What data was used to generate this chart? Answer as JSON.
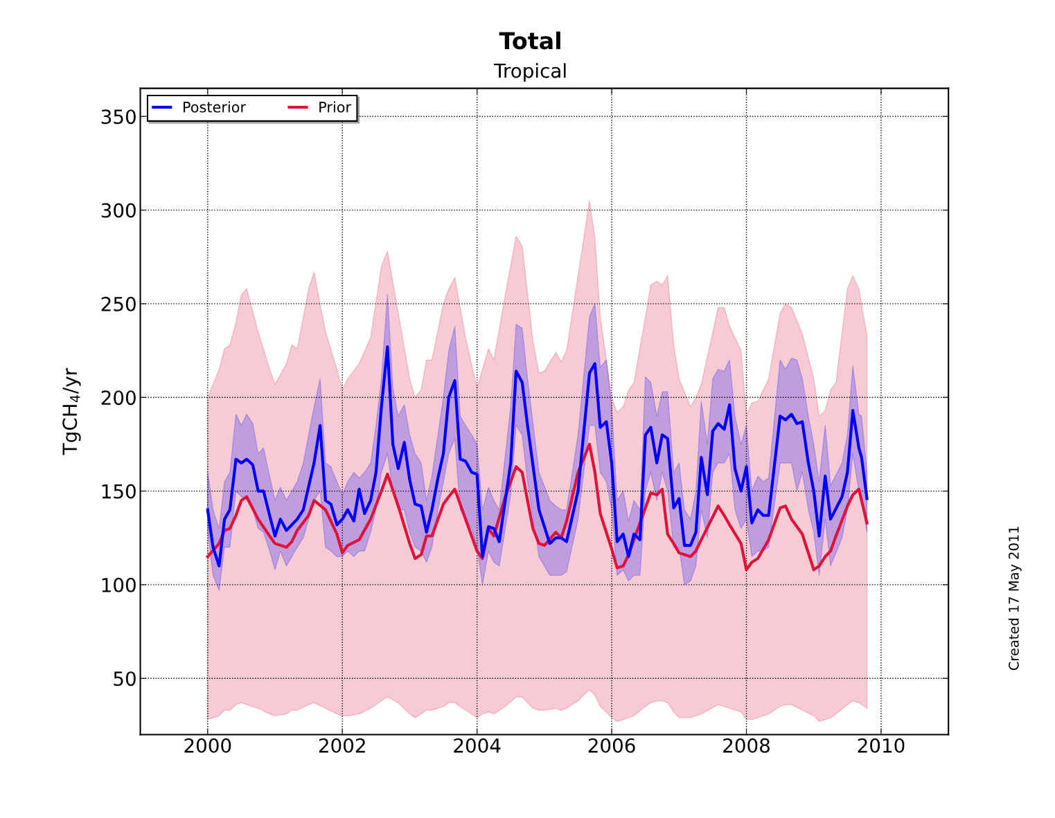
{
  "chart_data": {
    "type": "line",
    "title": "Total",
    "subtitle": "Tropical",
    "ylabel": "TgCH$_{4}$/yr",
    "annotations": [
      "Created 17 May 2011"
    ],
    "xlim": [
      1999,
      2011
    ],
    "xticks": [
      2000,
      2002,
      2004,
      2006,
      2008,
      2010
    ],
    "ylim": [
      20,
      365
    ],
    "yticks": [
      50,
      100,
      150,
      200,
      250,
      300,
      350
    ],
    "grid": true,
    "legend": "top left",
    "line_style": "solid",
    "marker": "none",
    "series": [
      {
        "name": "Prior",
        "color": "#dc143c",
        "x": [
          2000.0,
          2000.17,
          2000.25,
          2000.33,
          2000.42,
          2000.5,
          2000.58,
          2000.75,
          2000.92,
          2001.0,
          2001.17,
          2001.25,
          2001.33,
          2001.5,
          2001.58,
          2001.75,
          2001.92,
          2002.0,
          2002.08,
          2002.25,
          2002.42,
          2002.58,
          2002.67,
          2002.83,
          2003.0,
          2003.08,
          2003.17,
          2003.25,
          2003.33,
          2003.5,
          2003.58,
          2003.67,
          2003.83,
          2004.0,
          2004.08,
          2004.17,
          2004.25,
          2004.42,
          2004.58,
          2004.67,
          2004.83,
          2004.92,
          2005.0,
          2005.17,
          2005.25,
          2005.33,
          2005.5,
          2005.67,
          2005.75,
          2005.83,
          2006.0,
          2006.08,
          2006.17,
          2006.25,
          2006.33,
          2006.5,
          2006.58,
          2006.67,
          2006.75,
          2006.83,
          2006.92,
          2007.0,
          2007.17,
          2007.25,
          2007.33,
          2007.58,
          2007.67,
          2007.75,
          2007.92,
          2008.0,
          2008.08,
          2008.17,
          2008.33,
          2008.5,
          2008.58,
          2008.67,
          2008.83,
          2009.0,
          2009.08,
          2009.17,
          2009.25,
          2009.33,
          2009.5,
          2009.58,
          2009.67,
          2009.79
        ],
        "values": [
          115,
          122,
          129,
          130,
          137,
          145,
          147,
          135,
          126,
          122,
          120,
          123,
          129,
          137,
          145,
          140,
          127,
          117,
          121,
          124,
          135,
          150,
          159,
          142,
          122,
          114,
          116,
          126,
          126,
          143,
          147,
          151,
          135,
          118,
          114,
          130,
          126,
          147,
          163,
          160,
          130,
          122,
          121,
          128,
          125,
          134,
          160,
          175,
          160,
          138,
          119,
          109,
          110,
          116,
          124,
          141,
          149,
          148,
          151,
          127,
          122,
          117,
          115,
          118,
          124,
          142,
          137,
          132,
          122,
          108,
          112,
          114,
          124,
          141,
          142,
          135,
          127,
          108,
          110,
          115,
          118,
          126,
          142,
          148,
          151,
          133
        ],
        "upper": [
          200,
          215,
          226,
          228,
          240,
          255,
          258,
          235,
          215,
          207,
          218,
          228,
          226,
          258,
          267,
          235,
          215,
          204,
          210,
          218,
          232,
          270,
          278,
          245,
          210,
          200,
          204,
          220,
          220,
          250,
          258,
          264,
          232,
          205,
          215,
          226,
          220,
          255,
          286,
          281,
          230,
          213,
          214,
          224,
          219,
          225,
          265,
          305,
          285,
          243,
          200,
          192,
          195,
          204,
          208,
          243,
          260,
          262,
          260,
          265,
          228,
          210,
          195,
          200,
          207,
          248,
          248,
          238,
          225,
          190,
          197,
          198,
          210,
          245,
          250,
          248,
          234,
          210,
          190,
          193,
          204,
          208,
          258,
          265,
          258,
          233
        ],
        "lower": [
          28,
          30,
          33,
          33,
          36,
          37,
          36,
          34,
          31,
          30,
          31,
          33,
          33,
          36,
          37,
          34,
          31,
          30,
          30,
          31,
          34,
          38,
          40,
          37,
          31,
          29,
          31,
          33,
          33,
          35,
          37,
          37,
          33,
          29,
          31,
          32,
          31,
          35,
          40,
          40,
          34,
          33,
          33,
          34,
          33,
          34,
          38,
          44,
          41,
          35,
          29,
          27,
          28,
          29,
          30,
          35,
          37,
          38,
          38,
          37,
          32,
          29,
          29,
          30,
          31,
          36,
          35,
          34,
          32,
          28,
          28,
          29,
          31,
          35,
          36,
          36,
          33,
          30,
          27,
          28,
          29,
          31,
          36,
          38,
          37,
          34
        ]
      },
      {
        "name": "Posterior",
        "color": "#0000ff",
        "x": [
          2000.0,
          2000.08,
          2000.17,
          2000.25,
          2000.33,
          2000.42,
          2000.5,
          2000.58,
          2000.67,
          2000.75,
          2000.83,
          2000.92,
          2001.0,
          2001.08,
          2001.17,
          2001.33,
          2001.42,
          2001.58,
          2001.67,
          2001.75,
          2001.83,
          2001.92,
          2002.0,
          2002.08,
          2002.17,
          2002.25,
          2002.33,
          2002.42,
          2002.5,
          2002.58,
          2002.67,
          2002.75,
          2002.83,
          2002.92,
          2003.0,
          2003.08,
          2003.17,
          2003.25,
          2003.33,
          2003.42,
          2003.5,
          2003.58,
          2003.67,
          2003.75,
          2003.83,
          2003.92,
          2004.0,
          2004.08,
          2004.17,
          2004.25,
          2004.33,
          2004.5,
          2004.58,
          2004.67,
          2004.75,
          2004.92,
          2005.08,
          2005.17,
          2005.25,
          2005.33,
          2005.5,
          2005.67,
          2005.75,
          2005.83,
          2005.92,
          2006.0,
          2006.08,
          2006.17,
          2006.25,
          2006.33,
          2006.42,
          2006.5,
          2006.58,
          2006.67,
          2006.75,
          2006.83,
          2006.92,
          2007.0,
          2007.08,
          2007.17,
          2007.25,
          2007.33,
          2007.42,
          2007.5,
          2007.58,
          2007.67,
          2007.75,
          2007.83,
          2007.92,
          2008.0,
          2008.08,
          2008.17,
          2008.25,
          2008.33,
          2008.5,
          2008.58,
          2008.67,
          2008.75,
          2008.83,
          2008.92,
          2009.0,
          2009.08,
          2009.17,
          2009.25,
          2009.42,
          2009.5,
          2009.58,
          2009.67,
          2009.71,
          2009.79
        ],
        "values": [
          140,
          120,
          110,
          135,
          140,
          167,
          165,
          167,
          164,
          150,
          150,
          137,
          126,
          135,
          129,
          135,
          140,
          165,
          185,
          145,
          143,
          132,
          135,
          140,
          134,
          151,
          138,
          145,
          160,
          195,
          227,
          175,
          162,
          176,
          156,
          143,
          142,
          128,
          140,
          157,
          170,
          200,
          209,
          167,
          166,
          160,
          159,
          115,
          131,
          130,
          123,
          165,
          214,
          208,
          185,
          140,
          122,
          125,
          125,
          123,
          150,
          213,
          218,
          184,
          187,
          165,
          123,
          127,
          115,
          127,
          124,
          180,
          184,
          165,
          180,
          178,
          141,
          146,
          121,
          121,
          128,
          168,
          148,
          182,
          186,
          183,
          196,
          162,
          150,
          163,
          133,
          140,
          137,
          137,
          190,
          188,
          191,
          186,
          187,
          165,
          150,
          126,
          158,
          135,
          147,
          160,
          193,
          173,
          168,
          146
        ],
        "lower": [
          130,
          105,
          97,
          120,
          120,
          150,
          147,
          145,
          140,
          130,
          128,
          118,
          108,
          118,
          110,
          120,
          125,
          145,
          150,
          120,
          118,
          115,
          115,
          118,
          115,
          118,
          118,
          128,
          140,
          160,
          170,
          150,
          140,
          140,
          128,
          120,
          118,
          112,
          120,
          140,
          155,
          170,
          178,
          140,
          135,
          130,
          120,
          100,
          118,
          112,
          110,
          148,
          185,
          180,
          155,
          115,
          105,
          105,
          105,
          107,
          135,
          185,
          185,
          160,
          155,
          140,
          105,
          108,
          102,
          105,
          105,
          150,
          160,
          145,
          160,
          150,
          120,
          120,
          100,
          102,
          110,
          140,
          125,
          160,
          165,
          165,
          170,
          140,
          130,
          135,
          115,
          118,
          118,
          120,
          165,
          165,
          165,
          150,
          160,
          140,
          128,
          105,
          135,
          110,
          125,
          140,
          170,
          150,
          145,
          128
        ],
        "upper": [
          160,
          140,
          130,
          155,
          160,
          191,
          185,
          191,
          186,
          170,
          173,
          158,
          145,
          152,
          145,
          155,
          165,
          195,
          210,
          165,
          163,
          155,
          148,
          155,
          160,
          157,
          160,
          165,
          185,
          210,
          255,
          205,
          190,
          196,
          180,
          170,
          165,
          145,
          158,
          180,
          200,
          225,
          238,
          190,
          185,
          180,
          175,
          140,
          152,
          145,
          140,
          195,
          239,
          237,
          210,
          160,
          145,
          142,
          140,
          140,
          180,
          243,
          250,
          216,
          220,
          195,
          145,
          150,
          134,
          145,
          140,
          211,
          208,
          190,
          203,
          203,
          160,
          165,
          140,
          135,
          150,
          198,
          175,
          210,
          215,
          214,
          220,
          190,
          175,
          185,
          150,
          158,
          155,
          157,
          220,
          215,
          221,
          220,
          210,
          190,
          175,
          155,
          185,
          153,
          165,
          180,
          217,
          191,
          190,
          160
        ]
      }
    ]
  }
}
